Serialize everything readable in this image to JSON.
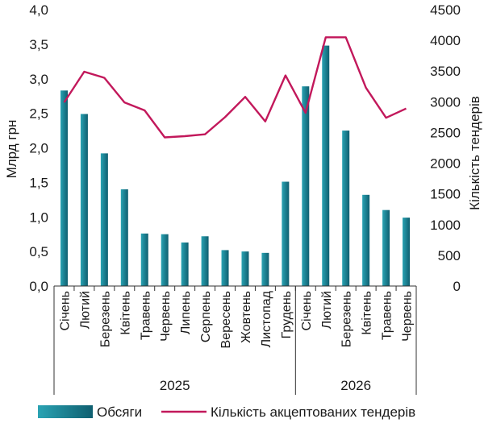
{
  "chart_data": {
    "type": "bar",
    "categories": [
      "Січень",
      "Лютий",
      "Березень",
      "Квітень",
      "Травень",
      "Червень",
      "Липень",
      "Серпень",
      "Вересень",
      "Жовтень",
      "Листопад",
      "Грудень",
      "Січень",
      "Лютий",
      "Березень",
      "Квітень",
      "Травень",
      "Червень"
    ],
    "groups": [
      {
        "label": "2025",
        "count": 12
      },
      {
        "label": "2026",
        "count": 6
      }
    ],
    "series": [
      {
        "name": "Обсяги",
        "type": "bar",
        "axis": "left",
        "color": "#1f8a9c",
        "values": [
          2.83,
          2.49,
          1.92,
          1.4,
          0.76,
          0.75,
          0.63,
          0.72,
          0.52,
          0.5,
          0.48,
          1.51,
          2.89,
          3.48,
          2.25,
          1.32,
          1.1,
          0.99
        ]
      },
      {
        "name": "Кількість акцептованих тендерів",
        "type": "line",
        "axis": "right",
        "color": "#c2185b",
        "values": [
          2990,
          3490,
          3390,
          2990,
          2860,
          2420,
          2440,
          2470,
          2750,
          3080,
          2680,
          3430,
          2820,
          4050,
          4050,
          3230,
          2740,
          2890
        ]
      }
    ],
    "ylabel": "Млрд грн",
    "y2label": "Кількість тендерів",
    "ylim": [
      0,
      4.0
    ],
    "y2lim": [
      0,
      4500
    ],
    "yticks": [
      "0,0",
      "0,5",
      "1,0",
      "1,5",
      "2,0",
      "2,5",
      "3,0",
      "3,5",
      "4,0"
    ],
    "y2ticks": [
      "0",
      "500",
      "1000",
      "1500",
      "2000",
      "2500",
      "3000",
      "3500",
      "4000",
      "4500"
    ],
    "legend_position": "bottom",
    "grid": false
  }
}
